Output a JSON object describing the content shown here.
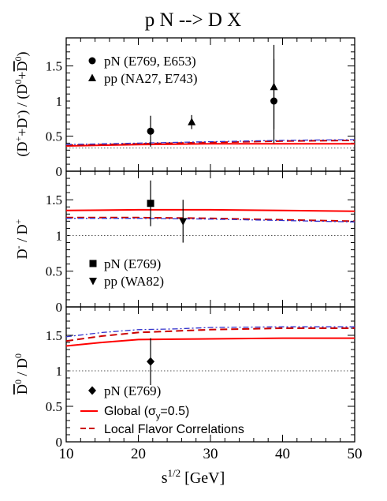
{
  "chart_data": {
    "title": "p N  -->  D X",
    "type": "scatter",
    "xlabel": "s^{1/2} [GeV]",
    "xlim": [
      10,
      50
    ],
    "x_ticks": [
      10,
      20,
      30,
      40,
      50
    ],
    "panels": [
      {
        "ylabel": "(D+ + D-) / (D0 + D0bar)",
        "ylim": [
          0,
          1.9
        ],
        "y_ticks": [
          "0",
          "0.5",
          "1",
          "1.5"
        ],
        "y_tick_values": [
          0,
          0.5,
          1,
          1.5
        ],
        "reference_line": 0.33,
        "data_series": [
          {
            "name": "pN (E769, E653)",
            "marker": "circle",
            "points": [
              {
                "x": 21.7,
                "y": 0.57,
                "err": 0.22
              },
              {
                "x": 38.8,
                "y": 1.0,
                "err": 0.6
              }
            ]
          },
          {
            "name": "pp  (NA27, E743)",
            "marker": "triangle-up",
            "points": [
              {
                "x": 27.4,
                "y": 0.7,
                "err": 0.1
              },
              {
                "x": 38.8,
                "y": 1.2,
                "err": 0.6
              }
            ]
          }
        ],
        "curves": [
          {
            "name": "Global",
            "style": "red-solid",
            "x": [
              10,
              20,
              30,
              40,
              50
            ],
            "y": [
              0.36,
              0.38,
              0.39,
              0.39,
              0.39
            ]
          },
          {
            "name": "Local Flavor Correlations",
            "style": "red-dashed",
            "x": [
              10,
              20,
              30,
              40,
              50
            ],
            "y": [
              0.37,
              0.39,
              0.41,
              0.43,
              0.44
            ]
          },
          {
            "style": "blue-dashdot",
            "x": [
              10,
              20,
              30,
              40,
              50
            ],
            "y": [
              0.38,
              0.4,
              0.42,
              0.44,
              0.45
            ]
          }
        ]
      },
      {
        "ylabel": "D- / D+",
        "ylim": [
          0,
          1.9
        ],
        "y_ticks": [
          "0",
          "0.5",
          "1",
          "1.5"
        ],
        "y_tick_values": [
          0,
          0.5,
          1,
          1.5
        ],
        "reference_line": 1.0,
        "data_series": [
          {
            "name": "pN (E769)",
            "marker": "square",
            "points": [
              {
                "x": 21.7,
                "y": 1.45,
                "err": 0.32
              }
            ]
          },
          {
            "name": "pp (WA82)",
            "marker": "triangle-down",
            "points": [
              {
                "x": 26.2,
                "y": 1.2,
                "err": 0.3
              }
            ]
          }
        ],
        "curves": [
          {
            "name": "Global",
            "style": "red-solid",
            "x": [
              10,
              20,
              30,
              40,
              50
            ],
            "y": [
              1.35,
              1.36,
              1.36,
              1.35,
              1.34
            ]
          },
          {
            "name": "Local Flavor Correlations",
            "style": "red-dashed",
            "x": [
              10,
              20,
              30,
              40,
              50
            ],
            "y": [
              1.25,
              1.25,
              1.24,
              1.22,
              1.2
            ]
          },
          {
            "style": "blue-dashdot",
            "x": [
              10,
              20,
              30,
              40,
              50
            ],
            "y": [
              1.24,
              1.24,
              1.23,
              1.21,
              1.19
            ]
          }
        ]
      },
      {
        "ylabel": "D0bar / D0",
        "ylim": [
          0,
          1.9
        ],
        "y_ticks": [
          "0",
          "0.5",
          "1",
          "1.5"
        ],
        "y_tick_values": [
          0,
          0.5,
          1,
          1.5
        ],
        "reference_line": 1.0,
        "data_series": [
          {
            "name": "pN (E769)",
            "marker": "diamond",
            "points": [
              {
                "x": 21.7,
                "y": 1.13,
                "err": 0.33
              }
            ]
          }
        ],
        "curves": [
          {
            "name": "Global (σy=0.5)",
            "style": "red-solid",
            "x": [
              10,
              15,
              20,
              25,
              30,
              40,
              50
            ],
            "y": [
              1.35,
              1.4,
              1.44,
              1.445,
              1.45,
              1.46,
              1.46
            ]
          },
          {
            "name": "Local Flavor Correlations",
            "style": "red-dashed",
            "x": [
              10,
              15,
              20,
              25,
              30,
              40,
              50
            ],
            "y": [
              1.42,
              1.49,
              1.54,
              1.56,
              1.58,
              1.6,
              1.6
            ]
          },
          {
            "style": "blue-dashdot",
            "x": [
              10,
              15,
              20,
              25,
              30,
              40,
              50
            ],
            "y": [
              1.48,
              1.54,
              1.58,
              1.59,
              1.61,
              1.62,
              1.62
            ]
          }
        ]
      }
    ],
    "legend": {
      "panel1": [
        "pN (E769, E653)",
        "pp  (NA27, E743)"
      ],
      "panel2": [
        "pN (E769)",
        "pp (WA82)"
      ],
      "panel3_markers": [
        "pN (E769)"
      ],
      "panel3_lines": [
        "Global (σy=0.5)",
        "Local Flavor Correlations"
      ]
    },
    "colors": {
      "global": "#ff0000",
      "local": "#cc0000",
      "dashdot": "#3333cc",
      "reference": "#555555",
      "axis": "#000000"
    }
  }
}
